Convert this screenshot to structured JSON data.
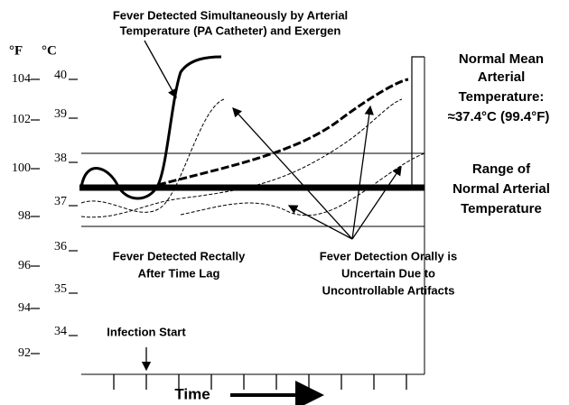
{
  "diagram": {
    "top_label": [
      "Fever Detected Simultaneously by Arterial",
      "Temperature (PA Catheter) and Exergen"
    ],
    "unit_f": "°F",
    "unit_c": "°C",
    "f_ticks": [
      "104",
      "102",
      "100",
      "98",
      "96",
      "94",
      "92"
    ],
    "c_ticks": [
      "40",
      "39",
      "38",
      "37",
      "36",
      "35",
      "34"
    ],
    "normal_mean": [
      "Normal Mean",
      "Arterial",
      "Temperature:",
      "≈37.4°C (99.4°F)"
    ],
    "range_label": [
      "Range of",
      "Normal Arterial",
      "Temperature"
    ],
    "rectal_label": [
      "Fever Detected Rectally",
      "After Time Lag"
    ],
    "oral_label": [
      "Fever Detection Orally is",
      "Uncertain Due to",
      "Uncontrollable Artifacts"
    ],
    "infection_label": "Infection Start",
    "x_label": "Time"
  }
}
